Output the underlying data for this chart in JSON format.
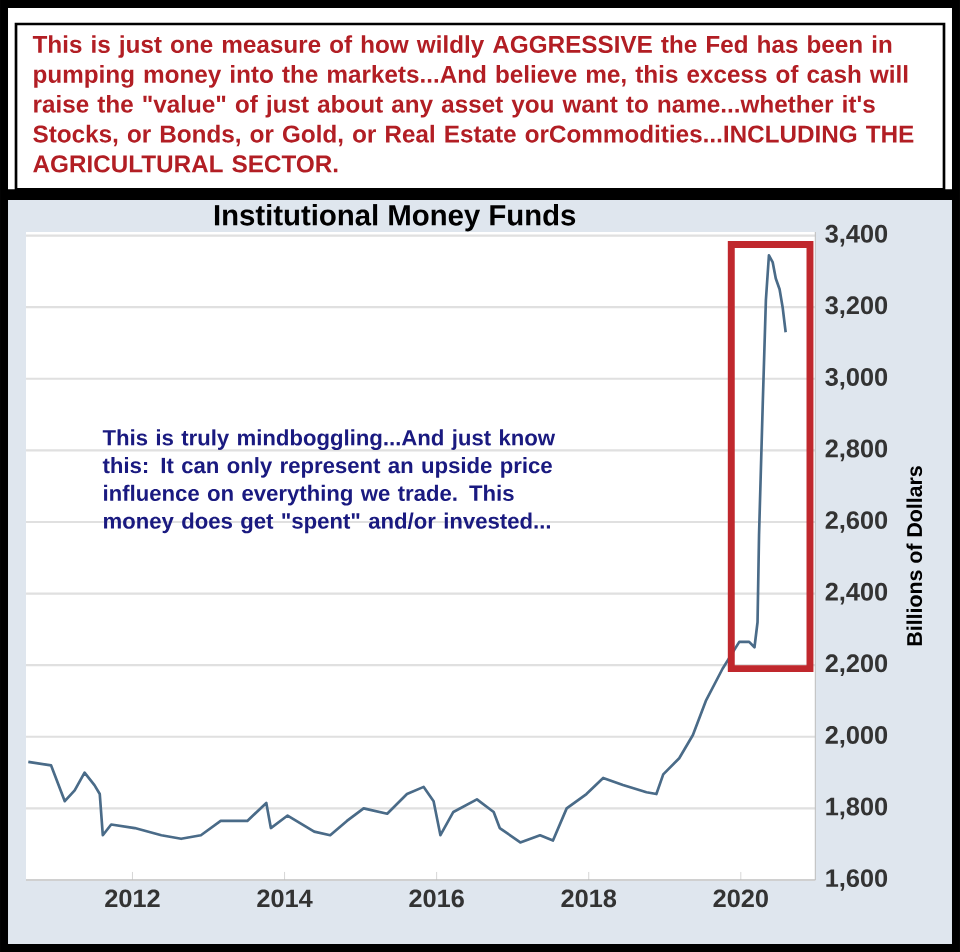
{
  "chart_data": {
    "type": "line",
    "title": "Institutional Money Funds",
    "ylabel": "Billions of Dollars",
    "annotations": [
      "This is just one measure of how wildly AGGRESSIVE the Fed has been in pumping money into the markets...And believe me, this excess of cash will raise the \"value\" of just about any asset you want to name...whether it's Stocks, or Bonds, or Gold, or Real Estate orCommodities...INCLUDING THE AGRICULTURAL SECTOR.",
      "This is truly mindboggling...And just know this: It can only represent an upside price influence on everything we trade. This money does get \"spent\" and/or invested..."
    ],
    "x": [
      2010.63,
      2010.93,
      2011.11,
      2011.24,
      2011.37,
      2011.5,
      2011.57,
      2011.61,
      2011.72,
      2012.03,
      2012.38,
      2012.64,
      2012.9,
      2013.16,
      2013.51,
      2013.76,
      2013.82,
      2014.04,
      2014.39,
      2014.6,
      2014.82,
      2015.04,
      2015.35,
      2015.61,
      2015.83,
      2015.96,
      2016.05,
      2016.22,
      2016.53,
      2016.75,
      2016.83,
      2017.1,
      2017.36,
      2017.53,
      2017.71,
      2017.97,
      2018.19,
      2018.45,
      2018.76,
      2018.89,
      2018.98,
      2019.19,
      2019.37,
      2019.54,
      2019.76,
      2019.98,
      2020.11,
      2020.18,
      2020.22,
      2020.24,
      2020.29,
      2020.33,
      2020.37,
      2020.42,
      2020.46,
      2020.51,
      2020.55,
      2020.59
    ],
    "series": [
      {
        "color": "#4a6b88",
        "values": [
          1930,
          1920,
          1820,
          1850,
          1900,
          1865,
          1840,
          1725,
          1755,
          1745,
          1725,
          1715,
          1725,
          1765,
          1765,
          1815,
          1745,
          1780,
          1735,
          1725,
          1765,
          1800,
          1785,
          1840,
          1860,
          1820,
          1725,
          1790,
          1825,
          1790,
          1745,
          1705,
          1725,
          1710,
          1800,
          1840,
          1885,
          1865,
          1845,
          1840,
          1895,
          1940,
          2005,
          2100,
          2190,
          2265,
          2265,
          2250,
          2320,
          2565,
          2940,
          3220,
          3345,
          3325,
          3280,
          3250,
          3200,
          3130
        ]
      }
    ],
    "xlim": [
      2010.6,
      2020.98
    ],
    "ylim": [
      1600,
      3410
    ],
    "xticks": [
      2012,
      2014,
      2016,
      2018,
      2020
    ],
    "yticks": [
      {
        "value": 1600,
        "label": "1,600"
      },
      {
        "value": 1800,
        "label": "1,800"
      },
      {
        "value": 2000,
        "label": "2,000"
      },
      {
        "value": 2200,
        "label": "2,200"
      },
      {
        "value": 2400,
        "label": "2,400"
      },
      {
        "value": 2600,
        "label": "2,600"
      },
      {
        "value": 2800,
        "label": "2,800"
      },
      {
        "value": 3000,
        "label": "3,000"
      },
      {
        "value": 3200,
        "label": "3,200"
      },
      {
        "value": 3400,
        "label": "3,400"
      }
    ],
    "grid": "y"
  }
}
